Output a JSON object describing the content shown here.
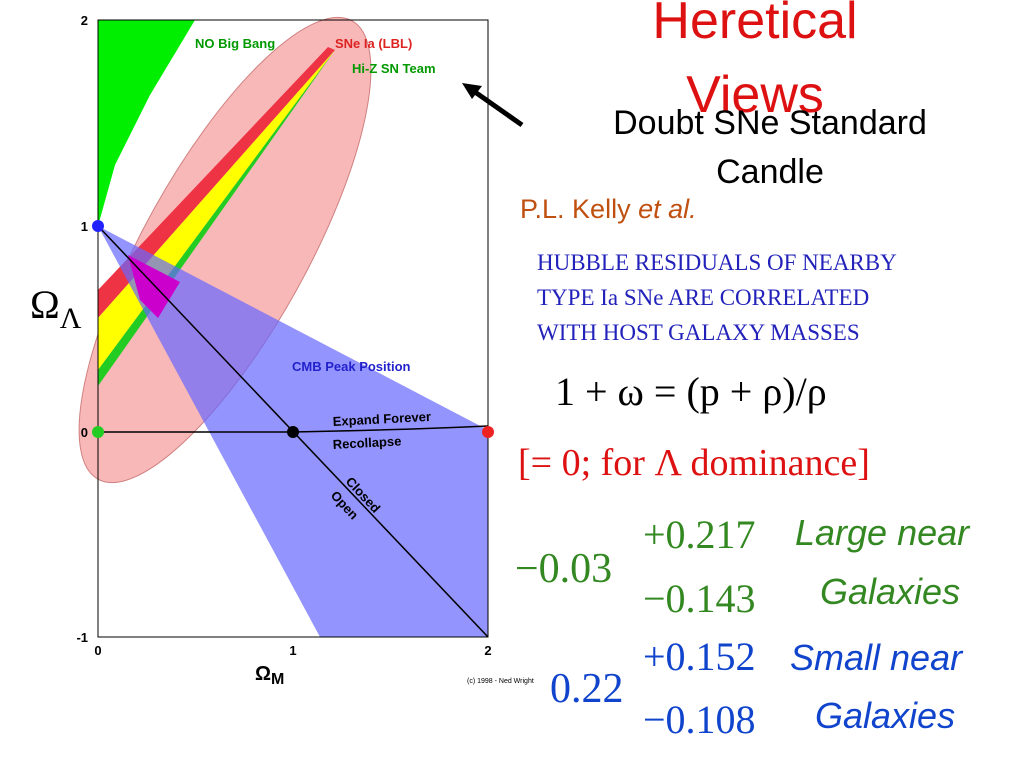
{
  "header": {
    "title_lines": [
      "Heretical",
      "Views"
    ],
    "subtitle_lines": [
      "Doubt SNe Standard",
      "Candle"
    ]
  },
  "plot": {
    "x_ticks": [
      "0",
      "1",
      "2"
    ],
    "y_ticks": [
      "2",
      "1",
      "0",
      "-1"
    ],
    "x_label": {
      "symbol": "Ω",
      "subscript": "M"
    },
    "y_label": {
      "symbol": "Ω",
      "subscript": "Λ"
    },
    "regions": [
      "NO Big Bang",
      "SNe Ia (LBL)",
      "Hi-Z SN Team",
      "CMB Peak Position"
    ],
    "lines": [
      "Expand Forever",
      "Recollapse",
      "Closed",
      "Open"
    ],
    "credit": "(c) 1998 - Ned Wright"
  },
  "citation": {
    "authors": "P.L. Kelly",
    "etal": "et al."
  },
  "abstract_lines": [
    "HUBBLE RESIDUALS OF NEARBY",
    "TYPE Ia SNe ARE CORRELATED",
    "WITH HOST GALAXY MASSES"
  ],
  "equations": {
    "state": "1 + ω = (p + ρ)/ρ",
    "note": "[= 0; for Λ dominance]"
  },
  "results": [
    {
      "value": "−0.03",
      "plus": "+0.217",
      "minus": "−0.143",
      "label_lines": [
        "Large near",
        "Galaxies"
      ]
    },
    {
      "value": "0.22",
      "plus": "+0.152",
      "minus": "−0.108",
      "label_lines": [
        "Small near",
        "Galaxies"
      ]
    }
  ]
}
